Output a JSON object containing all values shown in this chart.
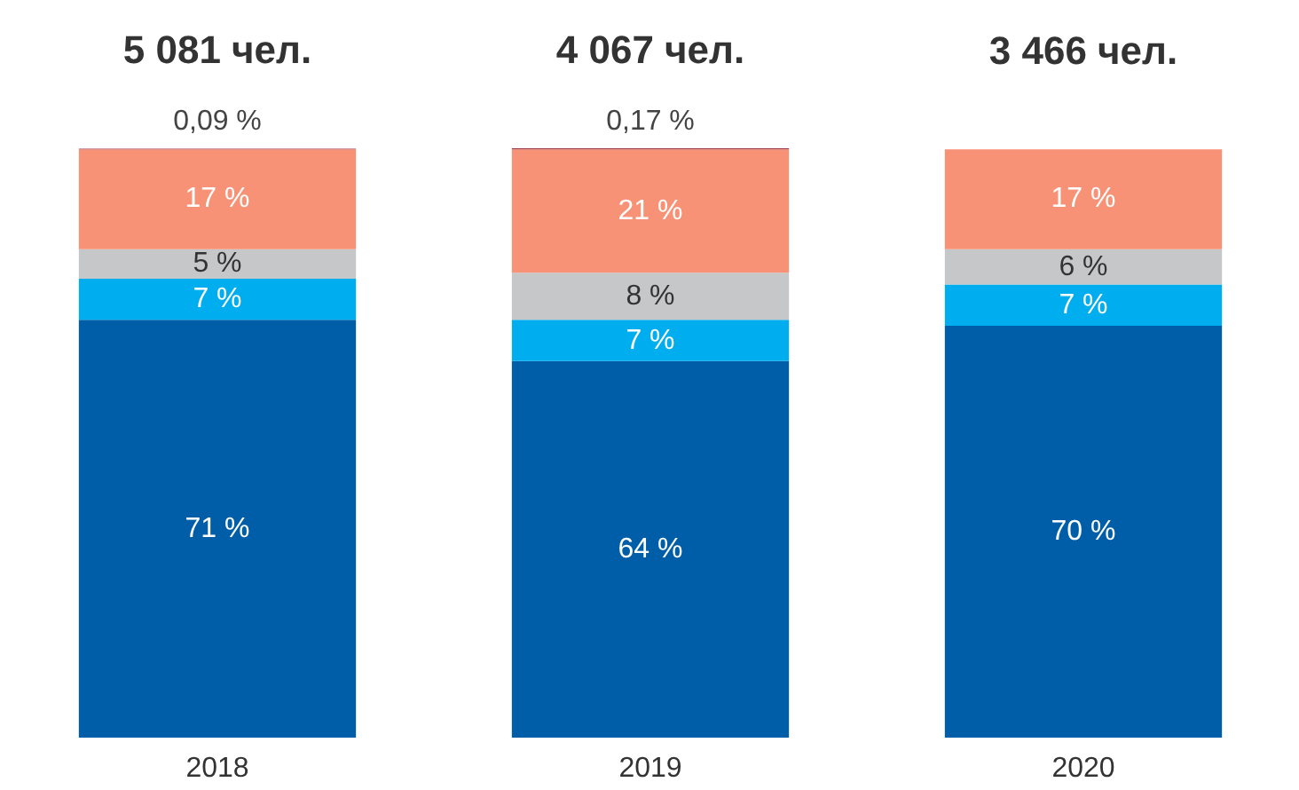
{
  "chart_data": {
    "type": "bar",
    "stacked": true,
    "categories": [
      "2018",
      "2019",
      "2020"
    ],
    "series": [
      {
        "color": "#005ea8",
        "values": [
          71,
          64,
          70
        ],
        "value_labels": [
          "71 %",
          "64 %",
          "70 %"
        ]
      },
      {
        "color": "#00aeef",
        "values": [
          7,
          7,
          7
        ],
        "value_labels": [
          "7 %",
          "7 %",
          "7 %"
        ]
      },
      {
        "color": "#c6c7c9",
        "values": [
          5,
          8,
          6
        ],
        "value_labels": [
          "5 %",
          "8 %",
          "6 %"
        ]
      },
      {
        "color": "#f79276",
        "values": [
          17,
          21,
          17
        ],
        "value_labels": [
          "17 %",
          "21 %",
          "17 %"
        ]
      },
      {
        "color": "#a23f4c",
        "values": [
          0.09,
          0.17,
          null
        ],
        "value_labels": [
          "0,09 %",
          "0,17 %",
          null
        ]
      }
    ],
    "annotations": [
      "5 081 чел.",
      "4 067 чел.",
      "3 466 чел."
    ],
    "grid": false
  }
}
